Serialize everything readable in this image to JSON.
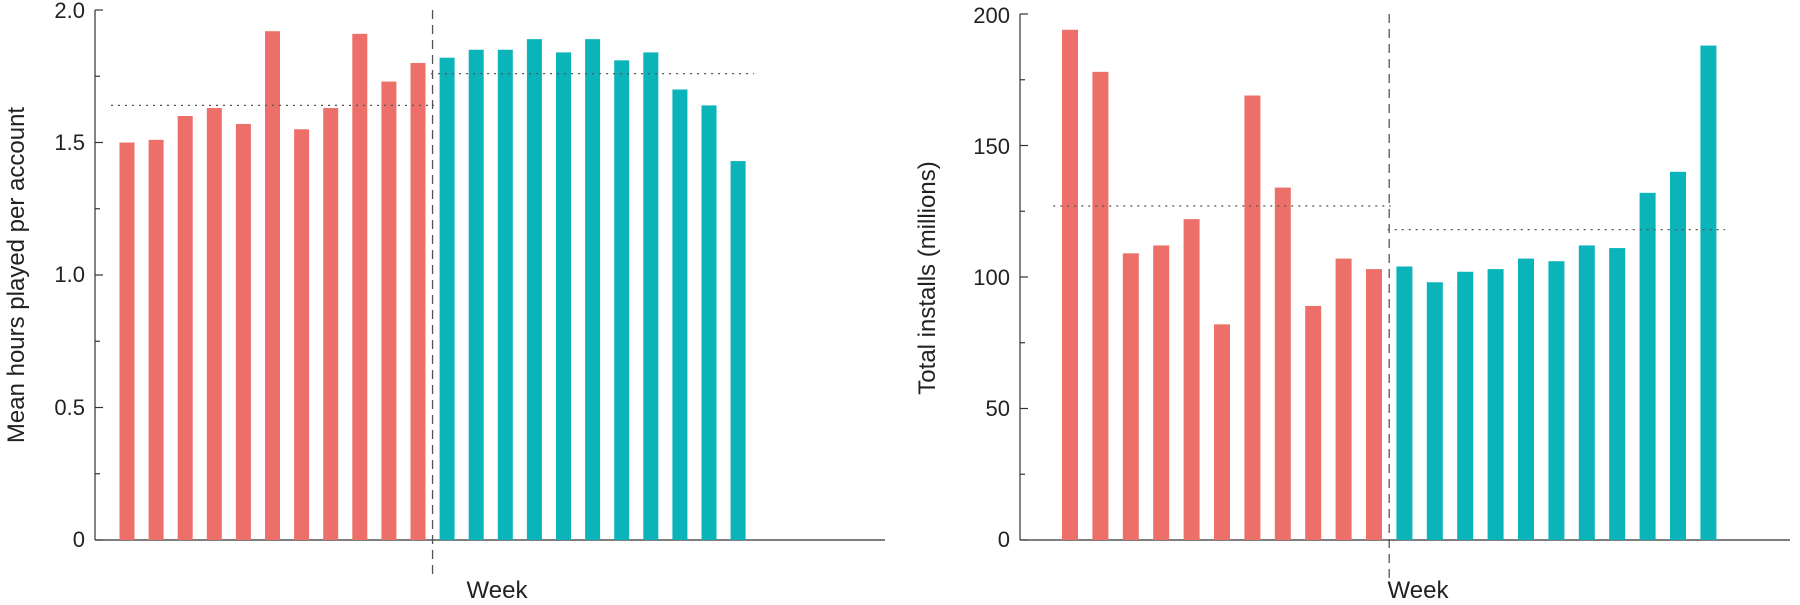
{
  "chart_data": [
    {
      "type": "bar",
      "title": "",
      "xlabel": "Week",
      "ylabel": "Mean hours played per account",
      "ylim": [
        0,
        2.0
      ],
      "yticks": [
        0,
        0.5,
        1.0,
        1.5,
        2.0
      ],
      "ytick_labels": [
        "0",
        "0.5",
        "1.0",
        "1.5",
        "2.0"
      ],
      "grid": false,
      "colors": {
        "before": "#EC7069",
        "after": "#0AB4B8"
      },
      "series": [
        {
          "values": [
            1.5,
            1.51,
            1.6,
            1.63,
            1.57,
            1.92,
            1.55,
            1.63,
            1.91,
            1.73,
            1.8
          ]
        },
        {
          "values": [
            1.82,
            1.85,
            1.85,
            1.89,
            1.84,
            1.89,
            1.81,
            1.84,
            1.7,
            1.64,
            1.43
          ]
        }
      ],
      "reference_lines": [
        1.64,
        1.76
      ]
    },
    {
      "type": "bar",
      "title": "",
      "xlabel": "Week",
      "ylabel": "Total installs (millions)",
      "ylim": [
        0,
        200
      ],
      "yticks": [
        0,
        50,
        100,
        150,
        200
      ],
      "ytick_labels": [
        "0",
        "50",
        "100",
        "150",
        "200"
      ],
      "grid": false,
      "colors": {
        "before": "#EC7069",
        "after": "#0AB4B8"
      },
      "series": [
        {
          "values": [
            194,
            178,
            109,
            112,
            122,
            82,
            169,
            134,
            89,
            107,
            103
          ]
        },
        {
          "values": [
            104,
            98,
            102,
            103,
            107,
            106,
            112,
            111,
            132,
            140,
            188
          ]
        }
      ],
      "reference_lines": [
        127,
        118
      ]
    }
  ]
}
